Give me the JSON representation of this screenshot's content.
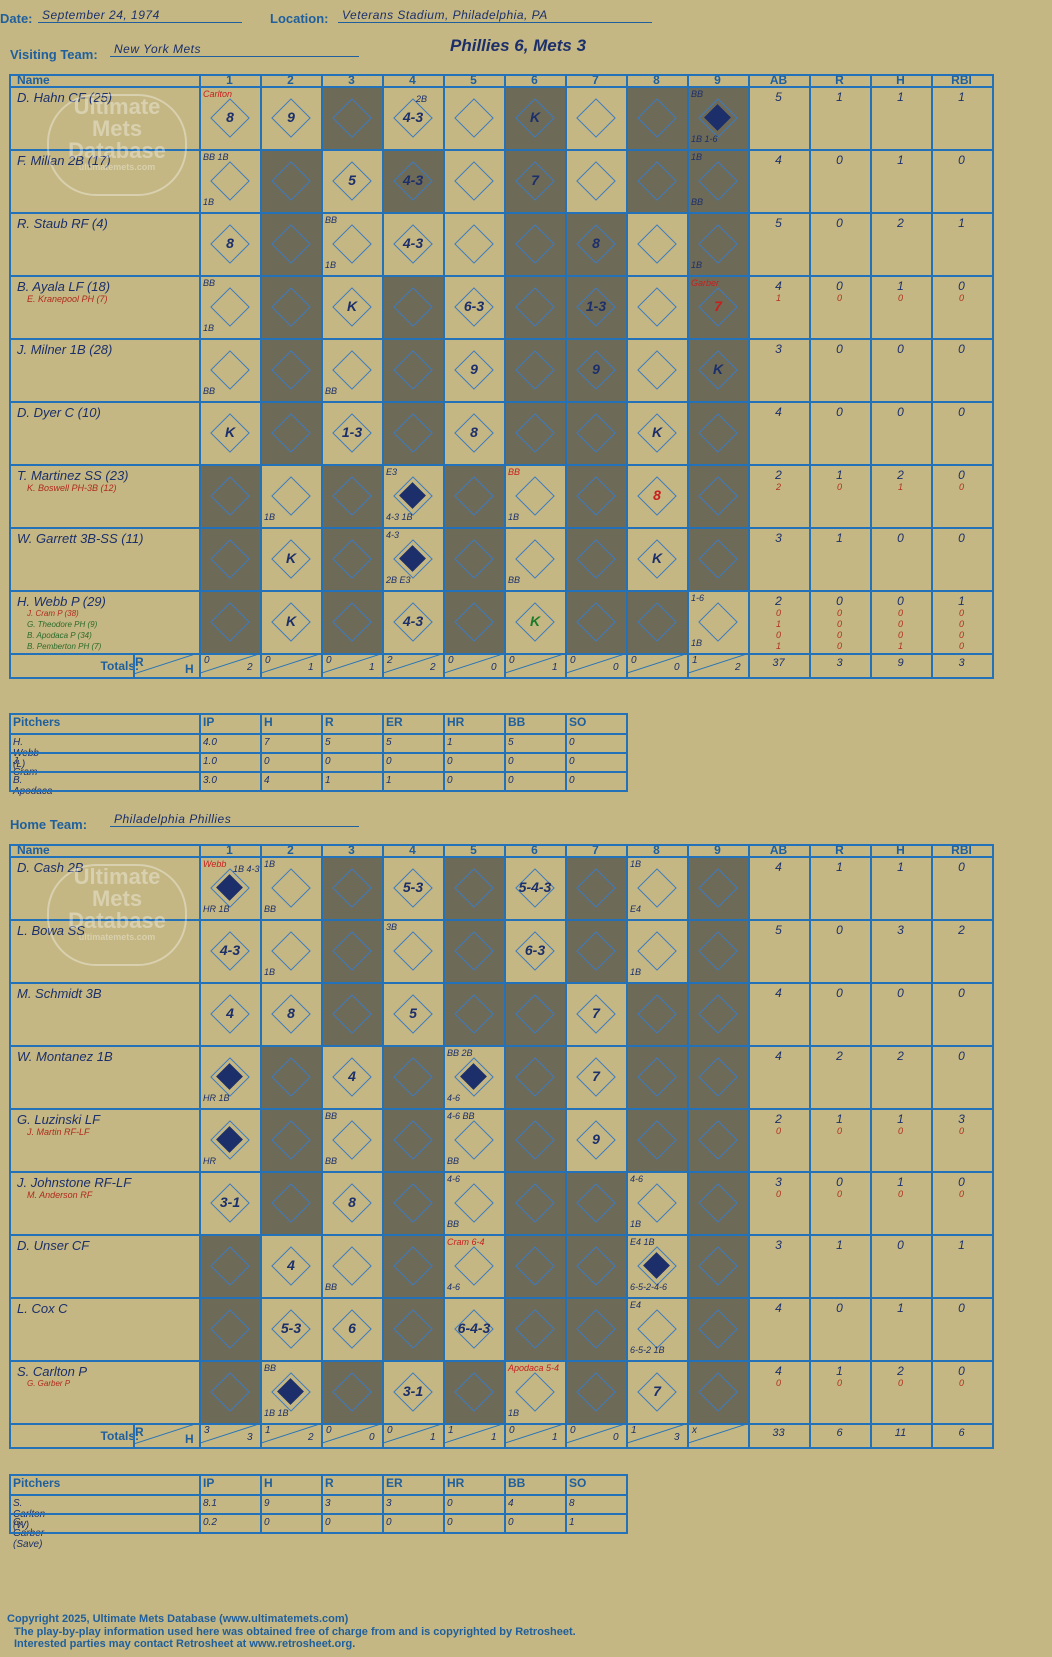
{
  "header": {
    "date_label": "Date:",
    "date": "September 24, 1974",
    "location_label": "Location:",
    "location": "Veterans Stadium, Philadelphia, PA",
    "visiting_label": "Visiting Team:",
    "visiting_team": "New York Mets",
    "home_label": "Home Team:",
    "home_team": "Philadelphia Phillies",
    "result": "Phillies 6, Mets 3"
  },
  "watermark": {
    "line1": "Ultimate",
    "line2": "Mets",
    "line3": "Database",
    "url": "ultimatemets.com"
  },
  "columns": [
    "Name",
    "1",
    "2",
    "3",
    "4",
    "5",
    "6",
    "7",
    "8",
    "9",
    "AB",
    "R",
    "H",
    "RBI"
  ],
  "totals_label": "Totals:",
  "rh_r": "R",
  "rh_h": "H",
  "visitors": {
    "players": [
      {
        "name": "D. Hahn CF (25)",
        "subs": [],
        "ab": [
          "5"
        ],
        "r": [
          "1"
        ],
        "h": [
          "1"
        ],
        "rbi": [
          "1"
        ]
      },
      {
        "name": "F. Millan 2B (17)",
        "subs": [],
        "ab": [
          "4"
        ],
        "r": [
          "0"
        ],
        "h": [
          "1"
        ],
        "rbi": [
          "0"
        ]
      },
      {
        "name": "R. Staub RF (4)",
        "subs": [],
        "ab": [
          "5"
        ],
        "r": [
          "0"
        ],
        "h": [
          "2"
        ],
        "rbi": [
          "1"
        ]
      },
      {
        "name": "B. Ayala LF (18)",
        "subs": [
          "E. Kranepool PH (7)"
        ],
        "ab": [
          "4",
          "1"
        ],
        "r": [
          "0",
          "0"
        ],
        "h": [
          "1",
          "0"
        ],
        "rbi": [
          "0",
          "0"
        ]
      },
      {
        "name": "J. Milner 1B (28)",
        "subs": [],
        "ab": [
          "3"
        ],
        "r": [
          "0"
        ],
        "h": [
          "0"
        ],
        "rbi": [
          "0"
        ]
      },
      {
        "name": "D. Dyer C (10)",
        "subs": [],
        "ab": [
          "4"
        ],
        "r": [
          "0"
        ],
        "h": [
          "0"
        ],
        "rbi": [
          "0"
        ]
      },
      {
        "name": "T. Martinez SS (23)",
        "subs": [
          "K. Boswell PH-3B (12)"
        ],
        "ab": [
          "2",
          "2"
        ],
        "r": [
          "1",
          "0"
        ],
        "h": [
          "2",
          "1"
        ],
        "rbi": [
          "0",
          "0"
        ]
      },
      {
        "name": "W. Garrett 3B-SS (11)",
        "subs": [],
        "ab": [
          "3"
        ],
        "r": [
          "1"
        ],
        "h": [
          "0"
        ],
        "rbi": [
          "0"
        ]
      },
      {
        "name": "H. Webb P (29)",
        "subs": [
          "J. Cram P (38)",
          "G. Theodore PH (9)",
          "B. Apodaca P (34)",
          "B. Pemberton PH (7)"
        ],
        "ab": [
          "2",
          "0",
          "1",
          "0",
          "1"
        ],
        "r": [
          "0",
          "0",
          "0",
          "0",
          "0"
        ],
        "h": [
          "0",
          "0",
          "0",
          "0",
          "1"
        ],
        "rbi": [
          "1",
          "0",
          "0",
          "0",
          "0"
        ]
      }
    ],
    "shaded": [
      [
        2,
        5,
        7,
        8
      ],
      [
        1,
        3,
        5,
        7,
        8
      ],
      [
        1,
        5,
        6,
        8
      ],
      [
        1,
        3,
        5,
        6,
        8
      ],
      [
        1,
        3,
        5,
        6,
        8
      ],
      [
        1,
        3,
        5,
        6,
        8
      ],
      [
        0,
        2,
        4,
        6,
        8
      ],
      [
        0,
        2,
        4,
        6,
        8
      ],
      [
        0,
        2,
        4,
        6,
        7
      ]
    ],
    "plays": [
      [
        {
          "c": 0,
          "t": "8",
          "n": "Carlton",
          "nc": "red"
        },
        {
          "c": 1,
          "t": "9"
        },
        {
          "c": 3,
          "t": "4-3",
          "n2": "2B"
        },
        {
          "c": 5,
          "t": "K"
        },
        {
          "c": 8,
          "t": "",
          "n": "BB",
          "n3": "1B  1-6",
          "scored": true
        }
      ],
      [
        {
          "c": 0,
          "t": "",
          "n": "BB 1B",
          "n3": "1B"
        },
        {
          "c": 2,
          "t": "5"
        },
        {
          "c": 3,
          "t": "4-3"
        },
        {
          "c": 5,
          "t": "7"
        },
        {
          "c": 8,
          "t": "",
          "n": "1B",
          "n3": "BB"
        }
      ],
      [
        {
          "c": 0,
          "t": "8"
        },
        {
          "c": 2,
          "t": "",
          "n": "BB",
          "n3": "1B"
        },
        {
          "c": 3,
          "t": "4-3"
        },
        {
          "c": 6,
          "t": "8"
        },
        {
          "c": 8,
          "t": "",
          "n3": "1B"
        }
      ],
      [
        {
          "c": 0,
          "t": "",
          "n": "BB",
          "n3": "1B"
        },
        {
          "c": 2,
          "t": "K"
        },
        {
          "c": 4,
          "t": "6-3"
        },
        {
          "c": 6,
          "t": "1-3"
        },
        {
          "c": 8,
          "t": "7",
          "n": "Garber",
          "nc": "red",
          "tc": "red"
        }
      ],
      [
        {
          "c": 0,
          "t": "",
          "n3": "BB"
        },
        {
          "c": 2,
          "t": "",
          "n3": "BB"
        },
        {
          "c": 4,
          "t": "9"
        },
        {
          "c": 6,
          "t": "9"
        },
        {
          "c": 8,
          "t": "K"
        }
      ],
      [
        {
          "c": 0,
          "t": "K"
        },
        {
          "c": 2,
          "t": "1-3"
        },
        {
          "c": 4,
          "t": "8"
        },
        {
          "c": 7,
          "t": "K"
        }
      ],
      [
        {
          "c": 1,
          "t": "",
          "n3": "1B"
        },
        {
          "c": 3,
          "t": "",
          "n": "E3",
          "n3": "4-3  1B",
          "scored": true
        },
        {
          "c": 5,
          "t": "",
          "n": "BB",
          "n3": "1B",
          "nc": "red"
        },
        {
          "c": 7,
          "t": "8",
          "tc": "red"
        }
      ],
      [
        {
          "c": 1,
          "t": "K"
        },
        {
          "c": 3,
          "t": "",
          "n": "4-3",
          "n3": "2B  E3",
          "scored": true
        },
        {
          "c": 5,
          "t": "",
          "n3": "BB"
        },
        {
          "c": 7,
          "t": "K"
        }
      ],
      [
        {
          "c": 1,
          "t": "K"
        },
        {
          "c": 3,
          "t": "4-3"
        },
        {
          "c": 5,
          "t": "K",
          "tc": "grn"
        },
        {
          "c": 8,
          "t": "",
          "n": "1-6",
          "n3": "1B"
        }
      ]
    ],
    "totals": [
      [
        "0",
        "2"
      ],
      [
        "0",
        "1"
      ],
      [
        "0",
        "1"
      ],
      [
        "2",
        "2"
      ],
      [
        "0",
        "0"
      ],
      [
        "0",
        "1"
      ],
      [
        "0",
        "0"
      ],
      [
        "0",
        "0"
      ],
      [
        "1",
        "2"
      ]
    ],
    "totals_stats": {
      "ab": "37",
      "r": "3",
      "h": "9",
      "rbi": "3"
    },
    "pitchers": [
      {
        "name": "H. Webb (L)",
        "ip": "4.0",
        "h": "7",
        "r": "5",
        "er": "5",
        "hr": "1",
        "bb": "5",
        "so": "0"
      },
      {
        "name": "J. Cram",
        "ip": "1.0",
        "h": "0",
        "r": "0",
        "er": "0",
        "hr": "0",
        "bb": "0",
        "so": "0"
      },
      {
        "name": "B. Apodaca",
        "ip": "3.0",
        "h": "4",
        "r": "1",
        "er": "1",
        "hr": "0",
        "bb": "0",
        "so": "0"
      }
    ]
  },
  "home": {
    "players": [
      {
        "name": "D. Cash 2B",
        "subs": [],
        "ab": [
          "4"
        ],
        "r": [
          "1"
        ],
        "h": [
          "1"
        ],
        "rbi": [
          "0"
        ]
      },
      {
        "name": "L. Bowa SS",
        "subs": [],
        "ab": [
          "5"
        ],
        "r": [
          "0"
        ],
        "h": [
          "3"
        ],
        "rbi": [
          "2"
        ]
      },
      {
        "name": "M. Schmidt 3B",
        "subs": [],
        "ab": [
          "4"
        ],
        "r": [
          "0"
        ],
        "h": [
          "0"
        ],
        "rbi": [
          "0"
        ]
      },
      {
        "name": "W. Montanez 1B",
        "subs": [],
        "ab": [
          "4"
        ],
        "r": [
          "2"
        ],
        "h": [
          "2"
        ],
        "rbi": [
          "0"
        ]
      },
      {
        "name": "G. Luzinski LF",
        "subs": [
          "J. Martin RF-LF"
        ],
        "ab": [
          "2",
          "0"
        ],
        "r": [
          "1",
          "0"
        ],
        "h": [
          "1",
          "0"
        ],
        "rbi": [
          "3",
          "0"
        ]
      },
      {
        "name": "J. Johnstone RF-LF",
        "subs": [
          "M. Anderson RF"
        ],
        "ab": [
          "3",
          "0"
        ],
        "r": [
          "0",
          "0"
        ],
        "h": [
          "1",
          "0"
        ],
        "rbi": [
          "0",
          "0"
        ]
      },
      {
        "name": "D. Unser CF",
        "subs": [],
        "ab": [
          "3"
        ],
        "r": [
          "1"
        ],
        "h": [
          "0"
        ],
        "rbi": [
          "1"
        ]
      },
      {
        "name": "L. Cox C",
        "subs": [],
        "ab": [
          "4"
        ],
        "r": [
          "0"
        ],
        "h": [
          "1"
        ],
        "rbi": [
          "0"
        ]
      },
      {
        "name": "S. Carlton P",
        "subs": [
          "G. Garber P"
        ],
        "ab": [
          "4",
          "0"
        ],
        "r": [
          "1",
          "0"
        ],
        "h": [
          "2",
          "0"
        ],
        "rbi": [
          "0",
          "0"
        ]
      }
    ],
    "shaded": [
      [
        2,
        4,
        6,
        8
      ],
      [
        2,
        4,
        6,
        8
      ],
      [
        2,
        4,
        5,
        7,
        8
      ],
      [
        1,
        3,
        5,
        7,
        8
      ],
      [
        1,
        3,
        5,
        7,
        8
      ],
      [
        1,
        3,
        5,
        6,
        8
      ],
      [
        0,
        3,
        5,
        6,
        8
      ],
      [
        0,
        3,
        5,
        6,
        8
      ],
      [
        0,
        2,
        4,
        6,
        8
      ]
    ],
    "plays": [
      [
        {
          "c": 0,
          "t": "",
          "n": "Webb",
          "nc": "red",
          "n2": "1B 4-3",
          "n3": "HR  1B",
          "scored": true
        },
        {
          "c": 1,
          "t": "",
          "n": "1B",
          "n3": "BB"
        },
        {
          "c": 3,
          "t": "5-3"
        },
        {
          "c": 5,
          "t": "5-4-3"
        },
        {
          "c": 7,
          "t": "",
          "n": "1B",
          "n3": "E4"
        }
      ],
      [
        {
          "c": 0,
          "t": "4-3"
        },
        {
          "c": 1,
          "t": "",
          "n3": "1B"
        },
        {
          "c": 3,
          "t": "",
          "n": "3B"
        },
        {
          "c": 5,
          "t": "6-3"
        },
        {
          "c": 7,
          "t": "",
          "n3": "1B"
        }
      ],
      [
        {
          "c": 0,
          "t": "4"
        },
        {
          "c": 1,
          "t": "8"
        },
        {
          "c": 3,
          "t": "5"
        },
        {
          "c": 6,
          "t": "7"
        }
      ],
      [
        {
          "c": 0,
          "t": "",
          "n3": "HR  1B",
          "scored": true
        },
        {
          "c": 2,
          "t": "4"
        },
        {
          "c": 4,
          "t": "",
          "n": "BB 2B",
          "n3": "4-6",
          "scored": true
        },
        {
          "c": 6,
          "t": "7"
        }
      ],
      [
        {
          "c": 0,
          "t": "",
          "n3": "HR",
          "scored": true
        },
        {
          "c": 2,
          "t": "",
          "n": "BB",
          "n3": "BB"
        },
        {
          "c": 4,
          "t": "",
          "n": "4-6 BB",
          "n3": "BB"
        },
        {
          "c": 6,
          "t": "9"
        }
      ],
      [
        {
          "c": 0,
          "t": "3-1"
        },
        {
          "c": 2,
          "t": "8"
        },
        {
          "c": 4,
          "t": "",
          "n": "4-6",
          "n3": "BB"
        },
        {
          "c": 7,
          "t": "",
          "n": "4-6",
          "n3": "1B"
        }
      ],
      [
        {
          "c": 1,
          "t": "4"
        },
        {
          "c": 2,
          "t": "",
          "n3": "BB"
        },
        {
          "c": 4,
          "t": "",
          "n": "Cram 6-4",
          "nc": "red",
          "n3": "4-6"
        },
        {
          "c": 7,
          "t": "",
          "n": "E4 1B",
          "n3": "6-5-2-4-6",
          "scored": true
        }
      ],
      [
        {
          "c": 1,
          "t": "5-3"
        },
        {
          "c": 2,
          "t": "6"
        },
        {
          "c": 4,
          "t": "6-4-3"
        },
        {
          "c": 7,
          "t": "",
          "n": "E4",
          "n3": "6-5-2 1B"
        }
      ],
      [
        {
          "c": 1,
          "t": "",
          "n": "BB",
          "n3": "1B  1B",
          "scored": true
        },
        {
          "c": 3,
          "t": "3-1"
        },
        {
          "c": 5,
          "t": "",
          "n": "Apodaca 5-4",
          "nc": "red",
          "n3": "1B"
        },
        {
          "c": 7,
          "t": "7"
        }
      ]
    ],
    "totals": [
      [
        "3",
        "3"
      ],
      [
        "1",
        "2"
      ],
      [
        "0",
        "0"
      ],
      [
        "0",
        "1"
      ],
      [
        "1",
        "1"
      ],
      [
        "0",
        "1"
      ],
      [
        "0",
        "0"
      ],
      [
        "1",
        "3"
      ],
      [
        "x",
        ""
      ]
    ],
    "totals_stats": {
      "ab": "33",
      "r": "6",
      "h": "11",
      "rbi": "6"
    },
    "pitchers": [
      {
        "name": "S. Carlton (W)",
        "ip": "8.1",
        "h": "9",
        "r": "3",
        "er": "3",
        "hr": "0",
        "bb": "4",
        "so": "8"
      },
      {
        "name": "G. Garber (Save)",
        "ip": "0.2",
        "h": "0",
        "r": "0",
        "er": "0",
        "hr": "0",
        "bb": "0",
        "so": "1"
      }
    ]
  },
  "pitcher_columns": [
    "Pitchers",
    "IP",
    "H",
    "R",
    "ER",
    "HR",
    "BB",
    "SO"
  ],
  "footer": {
    "line1": "Copyright 2025, Ultimate Mets Database (www.ultimatemets.com)",
    "line2": "The play-by-play information used here was obtained free of charge from and is copyrighted by Retrosheet.",
    "line3": "Interested parties may contact Retrosheet at www.retrosheet.org."
  },
  "colors": {
    "background": "#c4b783",
    "grid": "#2371b8",
    "shade": "#6e6a58",
    "ink": "#1c2f6b",
    "red": "#c81e1e"
  }
}
